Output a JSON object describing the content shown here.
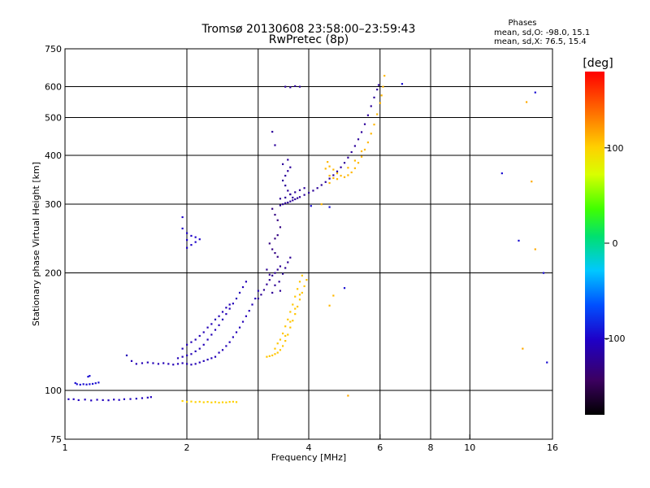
{
  "chart_data": {
    "type": "scatter",
    "title": "Tromsø 20130608 23:58:00–23:59:43",
    "subtitle": "RwPretec (8p)",
    "xlabel": "Frequency [MHz]",
    "ylabel": "Stationary phase Virtual Height [km]",
    "x_scale": "log",
    "y_scale": "log",
    "xlim": [
      1,
      16
    ],
    "ylim": [
      75,
      750
    ],
    "x_ticks": [
      1,
      2,
      4,
      6,
      8,
      10,
      16
    ],
    "x_tick_labels": [
      "1",
      "2",
      "4",
      "6",
      "8",
      "10",
      "16"
    ],
    "y_ticks": [
      75,
      100,
      200,
      300,
      400,
      500,
      600,
      750
    ],
    "y_tick_labels": [
      "75",
      "100",
      "200",
      "300",
      "400",
      "500",
      "600",
      "750"
    ],
    "x_grid": [
      2,
      3,
      4,
      6,
      8,
      10
    ],
    "y_grid": [
      100,
      200,
      300,
      400,
      500,
      600
    ],
    "grid": true,
    "phases": {
      "title": "Phases",
      "o_stats": "mean, sd,O: -98.0, 15.1",
      "x_stats": "mean, sd,X:  76.5, 15.4"
    },
    "colorbar": {
      "label": "[deg]",
      "range": [
        -180,
        180
      ],
      "ticks": [
        100,
        0,
        -100
      ],
      "tick_labels": [
        "100",
        "0",
        "-100"
      ]
    },
    "series": [
      {
        "phase": -105,
        "points": [
          [
            1.02,
            95
          ],
          [
            1.05,
            95
          ],
          [
            1.08,
            94.5
          ],
          [
            1.12,
            94.8
          ],
          [
            1.16,
            94.3
          ],
          [
            1.2,
            94.7
          ],
          [
            1.24,
            94.5
          ],
          [
            1.28,
            94.4
          ],
          [
            1.32,
            94.8
          ],
          [
            1.36,
            94.6
          ],
          [
            1.4,
            95
          ],
          [
            1.45,
            95.1
          ],
          [
            1.5,
            95.3
          ],
          [
            1.55,
            95.6
          ],
          [
            1.6,
            95.9
          ],
          [
            1.63,
            96.2
          ]
        ]
      },
      {
        "phase": -95,
        "points": [
          [
            1.06,
            104.5
          ],
          [
            1.07,
            103.8
          ],
          [
            1.09,
            103.5
          ],
          [
            1.11,
            103.8
          ],
          [
            1.13,
            103.6
          ],
          [
            1.15,
            103.8
          ],
          [
            1.17,
            104
          ],
          [
            1.19,
            104.4
          ],
          [
            1.21,
            104.8
          ],
          [
            1.14,
            108.5
          ],
          [
            1.15,
            109
          ]
        ]
      },
      {
        "phase": -108,
        "points": [
          [
            1.42,
            123
          ],
          [
            1.46,
            119
          ],
          [
            1.5,
            117
          ],
          [
            1.55,
            117.5
          ],
          [
            1.6,
            118
          ],
          [
            1.65,
            117.5
          ],
          [
            1.7,
            117
          ],
          [
            1.75,
            117.5
          ],
          [
            1.8,
            117
          ],
          [
            1.85,
            116.5
          ],
          [
            1.9,
            117
          ],
          [
            1.95,
            117.5
          ],
          [
            2.0,
            117
          ],
          [
            2.05,
            116.5
          ],
          [
            2.1,
            117
          ],
          [
            2.15,
            118
          ],
          [
            2.2,
            119
          ],
          [
            2.25,
            120
          ],
          [
            2.3,
            121
          ],
          [
            2.35,
            122
          ],
          [
            2.4,
            125
          ],
          [
            2.45,
            127
          ],
          [
            2.5,
            130
          ],
          [
            2.55,
            133
          ],
          [
            2.6,
            137
          ],
          [
            2.65,
            141
          ],
          [
            2.7,
            145
          ],
          [
            2.75,
            150
          ],
          [
            2.8,
            155
          ],
          [
            2.85,
            160
          ],
          [
            2.9,
            166
          ],
          [
            2.95,
            172
          ],
          [
            3.0,
            180
          ],
          [
            1.9,
            121
          ],
          [
            1.95,
            122
          ],
          [
            2.0,
            123
          ],
          [
            2.05,
            124
          ],
          [
            2.1,
            126
          ],
          [
            2.15,
            128
          ],
          [
            2.2,
            131
          ],
          [
            2.25,
            135
          ],
          [
            2.3,
            139
          ],
          [
            2.35,
            143
          ],
          [
            2.4,
            147
          ],
          [
            2.45,
            152
          ],
          [
            2.5,
            157
          ],
          [
            2.55,
            162
          ],
          [
            2.6,
            167
          ],
          [
            2.65,
            172
          ],
          [
            2.7,
            178
          ],
          [
            2.75,
            184
          ],
          [
            2.8,
            190
          ],
          [
            2.0,
            131
          ],
          [
            2.1,
            135
          ],
          [
            2.2,
            141
          ],
          [
            2.3,
            148
          ],
          [
            2.4,
            155
          ],
          [
            2.5,
            163
          ],
          [
            1.95,
            128
          ],
          [
            2.05,
            133
          ],
          [
            2.15,
            138
          ],
          [
            2.25,
            145
          ],
          [
            2.35,
            152
          ],
          [
            2.45,
            159
          ],
          [
            2.55,
            166
          ]
        ]
      },
      {
        "phase": -122,
        "points": [
          [
            3.0,
            172
          ],
          [
            3.05,
            176
          ],
          [
            3.1,
            181
          ],
          [
            3.15,
            187
          ],
          [
            3.2,
            192
          ],
          [
            3.25,
            197
          ],
          [
            3.3,
            200
          ],
          [
            3.35,
            204
          ],
          [
            3.4,
            208
          ],
          [
            3.45,
            199
          ],
          [
            3.5,
            206
          ],
          [
            3.55,
            213
          ],
          [
            3.6,
            219
          ],
          [
            3.15,
            204
          ],
          [
            3.2,
            198
          ],
          [
            3.3,
            186
          ],
          [
            3.25,
            178
          ],
          [
            3.38,
            190
          ],
          [
            3.4,
            180
          ]
        ]
      },
      {
        "phase": -120,
        "points": [
          [
            3.4,
            298
          ],
          [
            3.45,
            300
          ],
          [
            3.5,
            302
          ],
          [
            3.55,
            303
          ],
          [
            3.6,
            305
          ],
          [
            3.65,
            307
          ],
          [
            3.7,
            309
          ],
          [
            3.75,
            311
          ],
          [
            3.8,
            313
          ],
          [
            3.9,
            317
          ],
          [
            4.0,
            321
          ],
          [
            4.1,
            325
          ],
          [
            4.2,
            330
          ],
          [
            4.3,
            336
          ],
          [
            4.4,
            342
          ],
          [
            4.5,
            349
          ],
          [
            4.6,
            356
          ],
          [
            4.7,
            364
          ],
          [
            4.8,
            373
          ],
          [
            4.9,
            383
          ],
          [
            5.0,
            395
          ],
          [
            5.1,
            408
          ],
          [
            5.2,
            423
          ],
          [
            5.3,
            440
          ],
          [
            5.4,
            459
          ],
          [
            5.5,
            481
          ],
          [
            5.6,
            507
          ],
          [
            5.7,
            535
          ],
          [
            3.45,
            345
          ],
          [
            3.5,
            355
          ],
          [
            3.55,
            365
          ],
          [
            3.6,
            373
          ],
          [
            3.5,
            335
          ],
          [
            3.55,
            325
          ],
          [
            3.6,
            318
          ],
          [
            3.65,
            312
          ],
          [
            3.4,
            310
          ],
          [
            3.5,
            312
          ],
          [
            3.6,
            318
          ],
          [
            3.7,
            322
          ],
          [
            3.8,
            326
          ],
          [
            3.9,
            330
          ],
          [
            3.45,
            380
          ],
          [
            3.55,
            390
          ],
          [
            5.8,
            563
          ],
          [
            5.9,
            590
          ],
          [
            5.95,
            606
          ],
          [
            3.25,
            460
          ],
          [
            3.3,
            425
          ],
          [
            3.5,
            600
          ],
          [
            3.6,
            598
          ],
          [
            3.7,
            602
          ],
          [
            3.8,
            600
          ]
        ]
      },
      {
        "phase": -130,
        "points": [
          [
            3.2,
            238
          ],
          [
            3.25,
            230
          ],
          [
            3.3,
            225
          ],
          [
            3.35,
            220
          ],
          [
            3.3,
            245
          ],
          [
            3.35,
            250
          ],
          [
            3.4,
            262
          ],
          [
            3.35,
            273
          ],
          [
            3.3,
            282
          ],
          [
            3.25,
            292
          ]
        ]
      },
      {
        "phase": -100,
        "points": [
          [
            2.0,
            253
          ],
          [
            2.05,
            249
          ],
          [
            2.1,
            247
          ],
          [
            2.15,
            244
          ],
          [
            2.0,
            232
          ],
          [
            2.05,
            236
          ],
          [
            2.1,
            240
          ],
          [
            1.95,
            278
          ],
          [
            1.95,
            260
          ],
          [
            2.0,
            243
          ]
        ]
      },
      {
        "phase": 105,
        "points": [
          [
            3.15,
            122
          ],
          [
            3.2,
            122.5
          ],
          [
            3.25,
            123
          ],
          [
            3.3,
            124
          ],
          [
            3.35,
            125
          ],
          [
            3.4,
            127
          ],
          [
            3.45,
            130
          ],
          [
            3.5,
            134
          ],
          [
            3.55,
            139
          ],
          [
            3.6,
            145
          ],
          [
            3.65,
            151
          ],
          [
            3.7,
            157
          ],
          [
            3.75,
            164
          ],
          [
            3.8,
            171
          ],
          [
            3.85,
            178
          ],
          [
            3.9,
            185
          ],
          [
            3.95,
            192
          ],
          [
            3.4,
            135
          ],
          [
            3.45,
            140
          ],
          [
            3.5,
            146
          ],
          [
            3.55,
            152
          ],
          [
            3.6,
            159
          ],
          [
            3.65,
            166
          ],
          [
            3.7,
            174
          ],
          [
            3.75,
            182
          ],
          [
            3.8,
            190
          ],
          [
            3.85,
            197
          ],
          [
            3.3,
            128
          ],
          [
            3.35,
            132
          ],
          [
            3.5,
            138
          ],
          [
            3.6,
            150
          ],
          [
            3.7,
            162
          ],
          [
            3.8,
            176
          ]
        ]
      },
      {
        "phase": 100,
        "points": [
          [
            1.95,
            94
          ],
          [
            2.0,
            93.5
          ],
          [
            2.05,
            93.7
          ],
          [
            2.1,
            93.4
          ],
          [
            2.15,
            93.6
          ],
          [
            2.2,
            93.3
          ],
          [
            2.25,
            93.5
          ],
          [
            2.3,
            93.2
          ],
          [
            2.35,
            93.4
          ],
          [
            2.4,
            93.1
          ],
          [
            2.45,
            93.3
          ],
          [
            2.5,
            93.2
          ],
          [
            2.55,
            93.5
          ],
          [
            2.6,
            93.6
          ],
          [
            2.65,
            93.4
          ]
        ]
      },
      {
        "phase": 110,
        "points": [
          [
            4.4,
            370
          ],
          [
            4.5,
            375
          ],
          [
            4.6,
            368
          ],
          [
            4.7,
            360
          ],
          [
            4.8,
            355
          ],
          [
            4.9,
            352
          ],
          [
            5.0,
            356
          ],
          [
            5.1,
            362
          ],
          [
            5.2,
            371
          ],
          [
            5.3,
            383
          ],
          [
            5.4,
            397
          ],
          [
            5.5,
            414
          ],
          [
            5.6,
            432
          ],
          [
            5.7,
            455
          ],
          [
            5.8,
            480
          ],
          [
            5.9,
            510
          ],
          [
            6.0,
            545
          ],
          [
            6.05,
            570
          ],
          [
            6.1,
            600
          ],
          [
            6.15,
            640
          ],
          [
            4.5,
            355
          ],
          [
            4.6,
            350
          ],
          [
            4.7,
            348
          ],
          [
            5.0,
            372
          ],
          [
            5.2,
            388
          ],
          [
            5.4,
            410
          ],
          [
            4.45,
            385
          ],
          [
            4.5,
            340
          ],
          [
            4.3,
            300
          ],
          [
            4.5,
            165
          ],
          [
            4.6,
            175
          ]
        ]
      },
      {
        "phase": -95,
        "points": [
          [
            4.9,
            183
          ],
          [
            4.05,
            297
          ],
          [
            4.5,
            295
          ],
          [
            6.8,
            610
          ],
          [
            15.2,
            200
          ],
          [
            14.5,
            580
          ],
          [
            12.0,
            360
          ],
          [
            13.2,
            242
          ],
          [
            15.5,
            118
          ]
        ]
      },
      {
        "phase": 115,
        "points": [
          [
            13.8,
            548
          ],
          [
            14.2,
            343
          ],
          [
            14.5,
            230
          ],
          [
            5.0,
            97
          ],
          [
            13.5,
            128
          ]
        ]
      }
    ]
  }
}
